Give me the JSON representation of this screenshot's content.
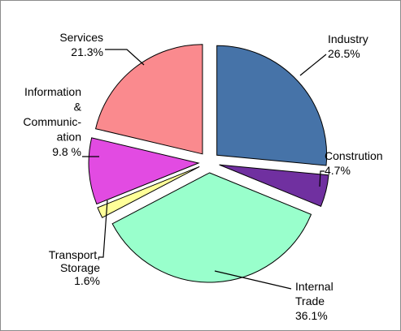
{
  "chart_data": {
    "type": "pie",
    "exploded": true,
    "legend": "none",
    "slices": [
      {
        "key": "industry",
        "lines": [
          "Industry"
        ],
        "pct_label": "26.5%",
        "value": 26.5,
        "color": "#4673a8"
      },
      {
        "key": "construction",
        "lines": [
          "Constrution"
        ],
        "pct_label": "4.7%",
        "value": 4.7,
        "color": "#7030a0"
      },
      {
        "key": "trade",
        "lines": [
          "Internal",
          "Trade"
        ],
        "pct_label": "36.1%",
        "value": 36.1,
        "color": "#99ffcc"
      },
      {
        "key": "transport",
        "lines": [
          "Transport,",
          "Storage"
        ],
        "pct_label": "1.6%",
        "value": 1.6,
        "color": "#ffff99"
      },
      {
        "key": "info",
        "lines": [
          "Information",
          "&",
          "Communic-",
          "ation"
        ],
        "pct_label": "9.8 %",
        "value": 9.8,
        "color": "#e24be2"
      },
      {
        "key": "services",
        "lines": [
          "Services"
        ],
        "pct_label": "21.3%",
        "value": 21.3,
        "color": "#fa8a8e"
      }
    ]
  }
}
